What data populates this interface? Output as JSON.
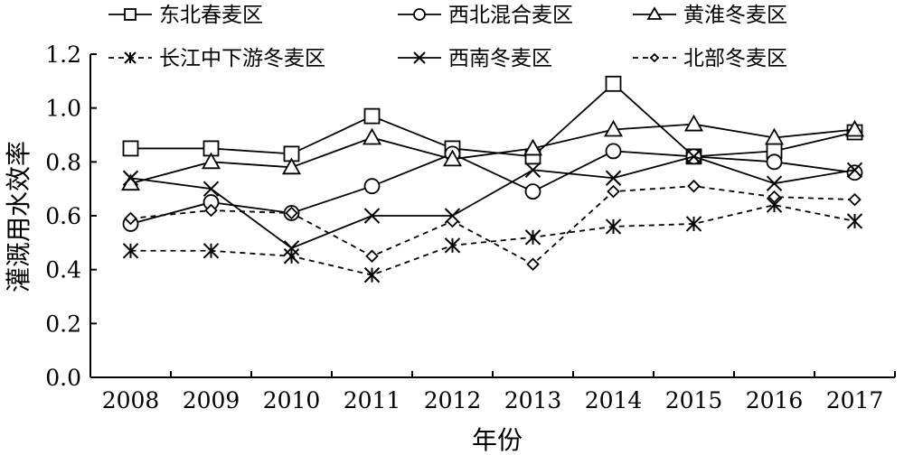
{
  "chart_data": {
    "type": "line",
    "xlabel": "年份",
    "ylabel": "灌溉用水效率",
    "ylim": [
      0,
      1.2
    ],
    "yticks": [
      "0.0",
      "0.2",
      "0.4",
      "0.6",
      "0.8",
      "1.0",
      "1.2"
    ],
    "categories": [
      "2008",
      "2009",
      "2010",
      "2011",
      "2012",
      "2013",
      "2014",
      "2015",
      "2016",
      "2017"
    ],
    "grid": false,
    "legend_position": "top",
    "series": [
      {
        "name": "东北春麦区",
        "marker": "square",
        "dash": "solid",
        "values": [
          0.85,
          0.85,
          0.83,
          0.97,
          0.85,
          0.82,
          1.09,
          0.82,
          0.84,
          0.91
        ]
      },
      {
        "name": "西北混合麦区",
        "marker": "circle",
        "dash": "solid",
        "values": [
          0.57,
          0.65,
          0.61,
          0.71,
          0.83,
          0.69,
          0.84,
          0.82,
          0.8,
          0.76
        ]
      },
      {
        "name": "黄淮冬麦区",
        "marker": "triangle",
        "dash": "solid",
        "values": [
          0.72,
          0.8,
          0.78,
          0.89,
          0.81,
          0.85,
          0.92,
          0.94,
          0.89,
          0.92
        ]
      },
      {
        "name": "长江中下游冬麦区",
        "marker": "asterisk",
        "dash": "dashed",
        "values": [
          0.47,
          0.47,
          0.45,
          0.38,
          0.49,
          0.52,
          0.56,
          0.57,
          0.64,
          0.58
        ]
      },
      {
        "name": "西南冬麦区",
        "marker": "x",
        "dash": "solid",
        "values": [
          0.74,
          0.7,
          0.48,
          0.6,
          0.6,
          0.77,
          0.74,
          0.82,
          0.72,
          0.77
        ]
      },
      {
        "name": "北部冬麦区",
        "marker": "diamond",
        "dash": "dashed",
        "values": [
          0.59,
          0.62,
          0.61,
          0.45,
          0.58,
          0.42,
          0.69,
          0.71,
          0.67,
          0.66
        ]
      }
    ]
  }
}
